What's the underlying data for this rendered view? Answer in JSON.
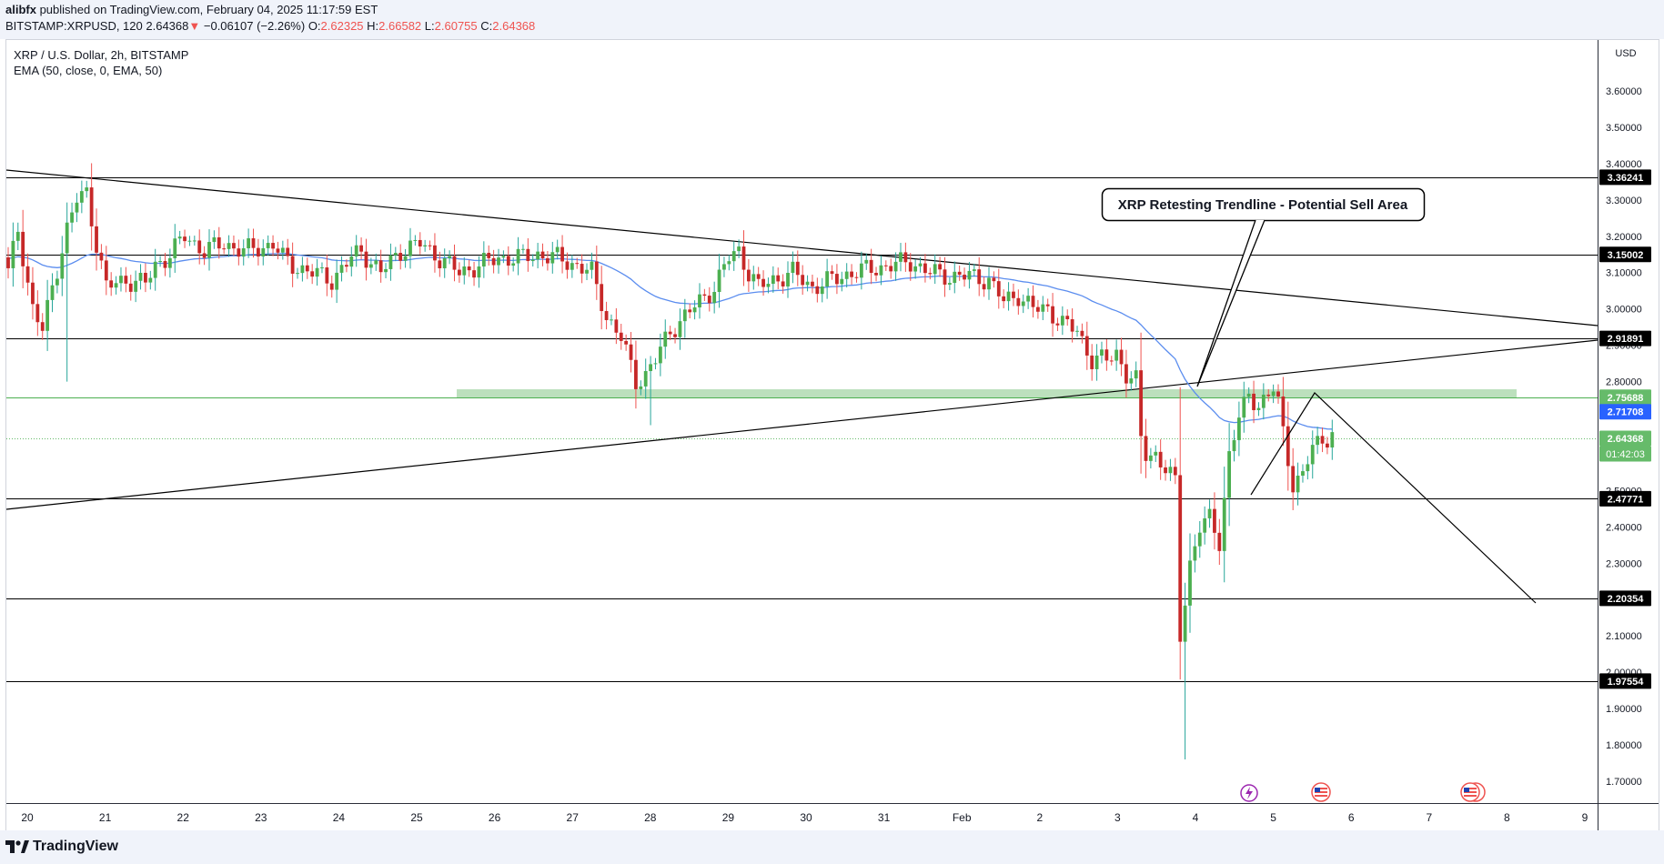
{
  "header": {
    "author": "alibfx",
    "published_line": " published on TradingView.com, February 04, 2025 11:17:59 EST",
    "symbol": "BITSTAMP:XRPUSD, 120",
    "last": "2.64368",
    "arrow": "▼",
    "change": "−0.06107 (−2.26%)",
    "open_label": "O:",
    "open": "2.62325",
    "high_label": "H:",
    "high": "2.66582",
    "low_label": "L:",
    "low": "2.60755",
    "close_label": "C:",
    "close": "2.64368"
  },
  "legend": {
    "title": "XRP / U.S. Dollar, 2h, BITSTAMP",
    "indicator": "EMA (50, close, 0, EMA, 50)"
  },
  "annotation": {
    "text": "XRP Retesting Trendline - Potential Sell Area"
  },
  "price_axis": {
    "currency": "USD",
    "ticks": [
      "3.60000",
      "3.50000",
      "3.40000",
      "3.30000",
      "3.20000",
      "3.10000",
      "3.00000",
      "2.90000",
      "2.80000",
      "2.50000",
      "2.40000",
      "2.30000",
      "2.10000",
      "2.00000",
      "1.90000",
      "1.80000",
      "1.70000"
    ]
  },
  "price_labels": [
    {
      "text": "3.36241",
      "kind": "level"
    },
    {
      "text": "3.15002",
      "kind": "level"
    },
    {
      "text": "2.91891",
      "kind": "level"
    },
    {
      "text": "2.75688",
      "kind": "zone"
    },
    {
      "text": "2.71708",
      "kind": "ema"
    },
    {
      "text": "2.64368",
      "kind": "last"
    },
    {
      "text": "01:42:03",
      "kind": "countdown"
    },
    {
      "text": "2.47771",
      "kind": "level"
    },
    {
      "text": "2.20354",
      "kind": "level"
    },
    {
      "text": "1.97554",
      "kind": "level"
    }
  ],
  "time_axis": {
    "labels": [
      "20",
      "21",
      "22",
      "23",
      "24",
      "25",
      "26",
      "27",
      "28",
      "29",
      "30",
      "31",
      "Feb",
      "2",
      "3",
      "4",
      "5",
      "6",
      "7",
      "8",
      "9"
    ]
  },
  "footer": {
    "brand": "TradingView"
  },
  "colors": {
    "up": "#26a69a",
    "up_body": "#4caf50",
    "down": "#ef5350",
    "down_body": "#c62828",
    "ema": "#2962ff",
    "zone": "#a5d6a7",
    "level_line": "#000000",
    "last_label": "#66bb6a"
  },
  "chart_data": {
    "type": "candlestick",
    "symbol": "BITSTAMP:XRPUSD",
    "interval": "2h",
    "ylim": [
      1.67,
      3.66
    ],
    "levels": [
      3.36241,
      3.15002,
      2.91891,
      2.47771,
      2.20354,
      1.97554
    ],
    "zone": [
      2.75688,
      2.78
    ],
    "ema_last": 2.71708,
    "last": 2.64368
  }
}
